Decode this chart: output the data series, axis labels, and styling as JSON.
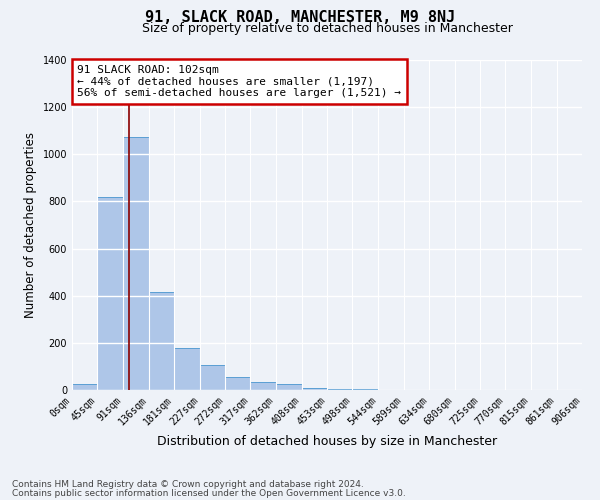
{
  "title": "91, SLACK ROAD, MANCHESTER, M9 8NJ",
  "subtitle": "Size of property relative to detached houses in Manchester",
  "xlabel": "Distribution of detached houses by size in Manchester",
  "ylabel": "Number of detached properties",
  "property_label": "91 SLACK ROAD: 102sqm",
  "annotation_line1": "← 44% of detached houses are smaller (1,197)",
  "annotation_line2": "56% of semi-detached houses are larger (1,521) →",
  "footer_line1": "Contains HM Land Registry data © Crown copyright and database right 2024.",
  "footer_line2": "Contains public sector information licensed under the Open Government Licence v3.0.",
  "bin_edges": [
    0,
    45,
    91,
    136,
    181,
    227,
    272,
    317,
    362,
    408,
    453,
    498,
    544,
    589,
    634,
    680,
    725,
    770,
    815,
    861,
    906
  ],
  "bar_heights": [
    25,
    820,
    1075,
    415,
    180,
    105,
    55,
    35,
    25,
    10,
    5,
    3,
    2,
    1,
    1,
    1,
    1,
    1,
    0,
    0
  ],
  "bar_color": "#aec6e8",
  "bar_edge_color": "#5a9fd4",
  "vline_color": "#8b0000",
  "vline_x": 102,
  "ylim": [
    0,
    1400
  ],
  "yticks": [
    0,
    200,
    400,
    600,
    800,
    1000,
    1200,
    1400
  ],
  "background_color": "#eef2f8",
  "grid_color": "#ffffff",
  "annotation_box_facecolor": "#ffffff",
  "annotation_border_color": "#cc0000",
  "title_fontsize": 11,
  "subtitle_fontsize": 9,
  "ylabel_fontsize": 8.5,
  "xlabel_fontsize": 9,
  "tick_fontsize": 7,
  "footer_fontsize": 6.5
}
